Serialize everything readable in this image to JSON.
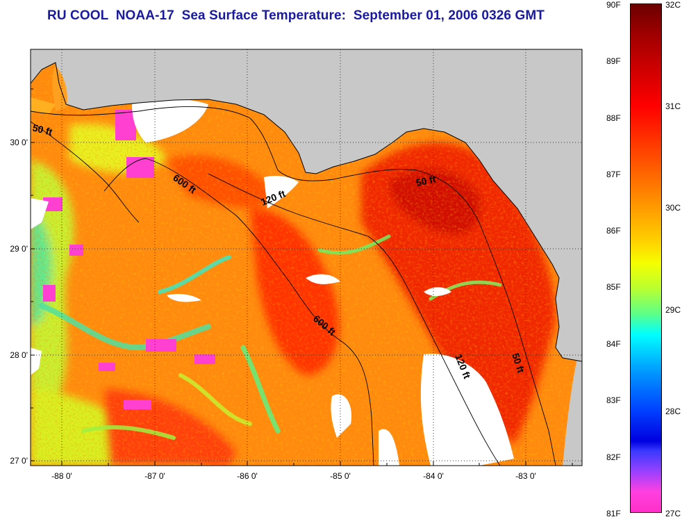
{
  "title": "RU COOL  NOAA-17  Sea Surface Temperature:  September 01, 2006 0326 GMT",
  "map": {
    "lon_ticks": [
      "-88 0'",
      "-87 0'",
      "-86 0'",
      "-85 0'",
      "-84 0'",
      "-83 0'"
    ],
    "lat_ticks": [
      "30 0'",
      "29 0'",
      "28 0'",
      "27 0'"
    ],
    "contour_labels": [
      "50 ft",
      "600 ft",
      "120 ft",
      "50 ft",
      "600 ft",
      "120 ft",
      "50 ft"
    ],
    "land_color": "#c8c8c8",
    "no_data_color": "#ffffff"
  },
  "colorbar": {
    "fahrenheit_labels": [
      "90F",
      "89F",
      "88F",
      "87F",
      "86F",
      "85F",
      "84F",
      "83F",
      "82F",
      "81F"
    ],
    "celsius_labels": [
      "32C",
      "31C",
      "30C",
      "29C",
      "28C",
      "27C"
    ],
    "range_f": [
      81,
      90
    ],
    "range_c": [
      27,
      32
    ]
  }
}
